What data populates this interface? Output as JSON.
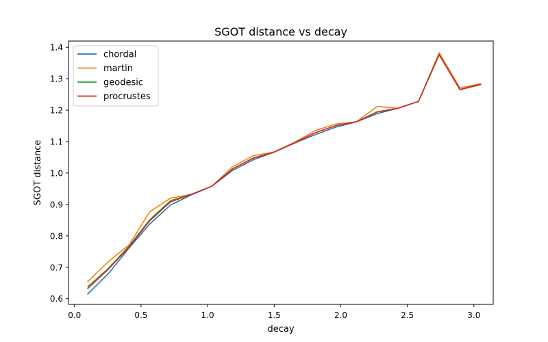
{
  "chart_data": {
    "type": "line",
    "title": "SGOT distance vs decay",
    "xlabel": "decay",
    "ylabel": "SGOT distance",
    "xlim": [
      -0.045,
      3.145
    ],
    "ylim": [
      0.582,
      1.42
    ],
    "xticks": [
      "0.0",
      "0.5",
      "1.0",
      "1.5",
      "2.0",
      "2.5",
      "3.0"
    ],
    "yticks": [
      "0.6",
      "0.7",
      "0.8",
      "0.9",
      "1.0",
      "1.1",
      "1.2",
      "1.3",
      "1.4"
    ],
    "grid": false,
    "legend_position": "top-left",
    "x": [
      0.1,
      0.255,
      0.411,
      0.566,
      0.721,
      0.876,
      1.032,
      1.187,
      1.342,
      1.497,
      1.653,
      1.808,
      1.963,
      2.118,
      2.274,
      2.429,
      2.584,
      2.739,
      2.895,
      3.05
    ],
    "series": [
      {
        "name": "chordal",
        "color": "#1f77b4",
        "values": [
          0.615,
          0.68,
          0.762,
          0.838,
          0.898,
          0.93,
          0.958,
          1.008,
          1.042,
          1.066,
          1.095,
          1.122,
          1.146,
          1.163,
          1.189,
          1.206,
          1.228,
          1.377,
          1.265,
          1.281
        ]
      },
      {
        "name": "martin",
        "color": "#ff7f0e",
        "values": [
          0.655,
          0.718,
          0.772,
          0.877,
          0.92,
          0.932,
          0.958,
          1.02,
          1.055,
          1.067,
          1.098,
          1.135,
          1.156,
          1.163,
          1.212,
          1.206,
          1.228,
          1.383,
          1.271,
          1.284
        ]
      },
      {
        "name": "geodesic",
        "color": "#2ca02c",
        "values": [
          0.638,
          0.697,
          0.768,
          0.852,
          0.912,
          0.932,
          0.958,
          1.013,
          1.048,
          1.066,
          1.096,
          1.128,
          1.151,
          1.163,
          1.195,
          1.206,
          1.228,
          1.378,
          1.266,
          1.282
        ]
      },
      {
        "name": "procrustes",
        "color": "#d62728",
        "values": [
          0.633,
          0.694,
          0.765,
          0.848,
          0.908,
          0.932,
          0.958,
          1.013,
          1.047,
          1.066,
          1.096,
          1.128,
          1.151,
          1.163,
          1.194,
          1.206,
          1.228,
          1.376,
          1.266,
          1.282
        ]
      }
    ]
  }
}
